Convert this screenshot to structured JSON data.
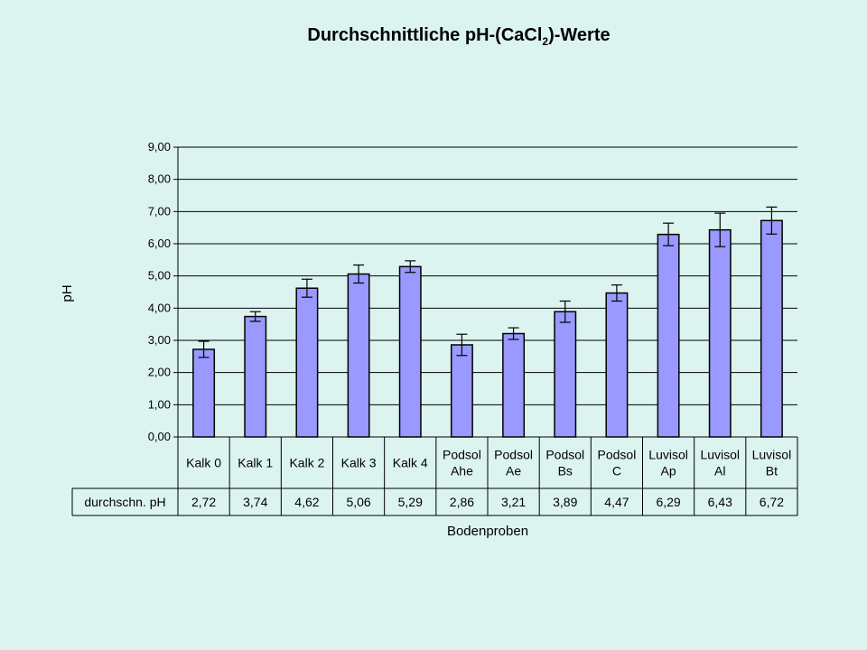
{
  "title": {
    "main": "Durchschnittliche pH-(CaCl",
    "subscript": "2",
    "suffix": ")-Werte"
  },
  "chart_data": {
    "type": "bar",
    "title": "Durchschnittliche pH-(CaCl2)-Werte",
    "xlabel": "Bodenproben",
    "ylabel": "pH",
    "ylim": [
      0,
      9
    ],
    "yticks": [
      0,
      1,
      2,
      3,
      4,
      5,
      6,
      7,
      8,
      9
    ],
    "ytick_labels": [
      "0,00",
      "1,00",
      "2,00",
      "3,00",
      "4,00",
      "5,00",
      "6,00",
      "7,00",
      "8,00",
      "9,00"
    ],
    "grid": true,
    "legend": "none",
    "bar_color": "#9999ff",
    "categories": [
      [
        "Kalk 0"
      ],
      [
        "Kalk 1"
      ],
      [
        "Kalk 2"
      ],
      [
        "Kalk 3"
      ],
      [
        "Kalk 4"
      ],
      [
        "Podsol",
        "Ahe"
      ],
      [
        "Podsol",
        "Ae"
      ],
      [
        "Podsol",
        "Bs"
      ],
      [
        "Podsol",
        "C"
      ],
      [
        "Luvisol",
        "Ap"
      ],
      [
        "Luvisol",
        "Al"
      ],
      [
        "Luvisol",
        "Bt"
      ]
    ],
    "values": [
      2.72,
      3.74,
      4.62,
      5.06,
      5.29,
      2.86,
      3.21,
      3.89,
      4.47,
      6.29,
      6.43,
      6.72
    ],
    "error": [
      0.25,
      0.15,
      0.28,
      0.28,
      0.18,
      0.33,
      0.18,
      0.33,
      0.25,
      0.35,
      0.52,
      0.42
    ],
    "table": {
      "row_label": "durchschn. pH",
      "values": [
        "2,72",
        "3,74",
        "4,62",
        "5,06",
        "5,29",
        "2,86",
        "3,21",
        "3,89",
        "4,47",
        "6,29",
        "6,43",
        "6,72"
      ]
    }
  }
}
